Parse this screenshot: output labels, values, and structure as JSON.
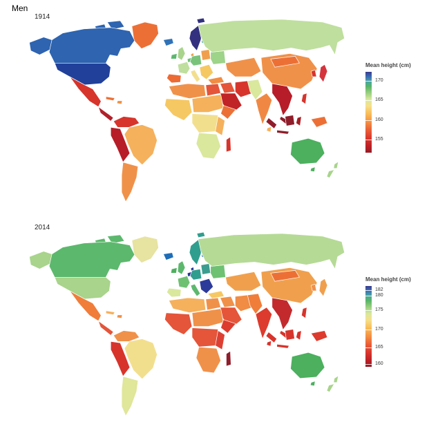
{
  "page_title": "Men",
  "color_scale_stops": [
    {
      "pos": 0.0,
      "color": "#3a3c8e"
    },
    {
      "pos": 0.06,
      "color": "#3a6db4"
    },
    {
      "pos": 0.12,
      "color": "#49a7a2"
    },
    {
      "pos": 0.18,
      "color": "#57b566"
    },
    {
      "pos": 0.26,
      "color": "#98cf7f"
    },
    {
      "pos": 0.34,
      "color": "#d9e89c"
    },
    {
      "pos": 0.42,
      "color": "#f6e08b"
    },
    {
      "pos": 0.52,
      "color": "#f8bc58"
    },
    {
      "pos": 0.62,
      "color": "#f59043"
    },
    {
      "pos": 0.72,
      "color": "#ea5f37"
    },
    {
      "pos": 0.82,
      "color": "#da372d"
    },
    {
      "pos": 0.92,
      "color": "#bc2026"
    },
    {
      "pos": 1.0,
      "color": "#951c27"
    }
  ],
  "chart_data": [
    {
      "type": "heatmap",
      "subtype": "world-choropleth",
      "title": "1914",
      "legend_title": "Mean height (cm)",
      "colorbar_ticks": [
        "170",
        "165",
        "160",
        "155"
      ],
      "tick_positions": [
        0.11,
        0.35,
        0.6,
        0.84
      ],
      "value_range": [
        152,
        172.5
      ],
      "legend_position": "right",
      "regions": {
        "greenland": {
          "color": "#ec7036",
          "value": 161
        },
        "baffin": {
          "color": "#2e64b0",
          "value": 170.5
        },
        "arctic2": {
          "color": "#2e64b0",
          "value": 170.5
        },
        "alaska": {
          "color": "#2e64b0",
          "value": 170.5
        },
        "canada": {
          "color": "#2e64b0",
          "value": 170.5
        },
        "usa": {
          "color": "#21409a",
          "value": 171
        },
        "mexico": {
          "color": "#d7342c",
          "value": 157.5
        },
        "central-america": {
          "color": "#b0212b",
          "value": 155
        },
        "cuba": {
          "color": "#ec7036",
          "value": 161
        },
        "hispaniola": {
          "color": "#f09144",
          "value": 162
        },
        "colombia-venezuela": {
          "color": "#d7342c",
          "value": 157.5
        },
        "andes": {
          "color": "#b71d28",
          "value": 155
        },
        "brazil": {
          "color": "#f5b15c",
          "value": 163.5
        },
        "argentina-chile": {
          "color": "#f0914a",
          "value": 162.5
        },
        "iceland": {
          "color": "#3072b7",
          "value": 170.5
        },
        "ireland": {
          "color": "#5cb86d",
          "value": 168
        },
        "uk": {
          "color": "#a8d48b",
          "value": 166.5
        },
        "scandinavia": {
          "color": "#32307f",
          "value": 172
        },
        "svalbard": {
          "color": "#32307f",
          "value": 172
        },
        "finland": {
          "color": "#2f9e8e",
          "value": 169.5
        },
        "denmark": {
          "color": "#f0a04c",
          "value": 162.5
        },
        "low-countries": {
          "color": "#6ec173",
          "value": 168
        },
        "germany-central": {
          "color": "#79c47a",
          "value": 167.5
        },
        "poland-baltics": {
          "color": "#f0a04c",
          "value": 162.5
        },
        "france": {
          "color": "#bfdf9e",
          "value": 166.5
        },
        "iberia": {
          "color": "#ec6a33",
          "value": 160.5
        },
        "italy": {
          "color": "#f2df8e",
          "value": 165
        },
        "balkans": {
          "color": "#f6c863",
          "value": 164.5
        },
        "ukraine-east": {
          "color": "#9ed38a",
          "value": 166.5
        },
        "russia": {
          "color": "#bfdf9e",
          "value": 166.5
        },
        "central-asia": {
          "color": "#f0914a",
          "value": 162.5
        },
        "turkey": {
          "color": "#f08c43",
          "value": 162
        },
        "iraq-syria": {
          "color": "#e4553a",
          "value": 159.5
        },
        "iran": {
          "color": "#d7342c",
          "value": 157.5
        },
        "arabia": {
          "color": "#c02427",
          "value": 154.5
        },
        "afghanistan-pakistan": {
          "color": "#d9e89c",
          "value": 165.5
        },
        "india": {
          "color": "#f08843",
          "value": 162
        },
        "sri-lanka": {
          "color": "#f5b15c",
          "value": 163.5
        },
        "china": {
          "color": "#f0914a",
          "value": 162.5
        },
        "mongolia": {
          "color": "#ec7036",
          "value": 161
        },
        "korea": {
          "color": "#d7342c",
          "value": 157.5
        },
        "japan": {
          "color": "#d5333c",
          "value": 157.5
        },
        "se-asia": {
          "color": "#b71d28",
          "value": 155
        },
        "malaysia": {
          "color": "#8f1d2a",
          "value": 153
        },
        "philippines": {
          "color": "#d7342c",
          "value": 157.5
        },
        "sumatra": {
          "color": "#8f1d2a",
          "value": 153
        },
        "borneo": {
          "color": "#8f1d2a",
          "value": 153
        },
        "java": {
          "color": "#8f1d2a",
          "value": 153
        },
        "sulawesi": {
          "color": "#a31e24",
          "value": 154
        },
        "new-guinea": {
          "color": "#ec7036",
          "value": 161
        },
        "maghreb": {
          "color": "#f0914a",
          "value": 162.5
        },
        "egypt": {
          "color": "#e4553a",
          "value": 159.5
        },
        "west-africa": {
          "color": "#f6c863",
          "value": 164.5
        },
        "sudan-belt": {
          "color": "#f5b15c",
          "value": 163.5
        },
        "horn-africa": {
          "color": "#ec7036",
          "value": 161
        },
        "central-africa": {
          "color": "#f2df8e",
          "value": 165
        },
        "east-africa": {
          "color": "#f5b15c",
          "value": 163.5
        },
        "southern-africa": {
          "color": "#d9e89c",
          "value": 165.5
        },
        "madagascar": {
          "color": "#d7342c",
          "value": 157.5
        },
        "australia": {
          "color": "#4cb05e",
          "value": 168
        },
        "tasmania": {
          "color": "#4cb05e",
          "value": 168
        },
        "nz-north": {
          "color": "#a8d48b",
          "value": 166.5
        },
        "nz-south": {
          "color": "#a8d48b",
          "value": 166.5
        }
      }
    },
    {
      "type": "heatmap",
      "subtype": "world-choropleth",
      "title": "2014",
      "legend_title": "Mean height (cm)",
      "colorbar_ticks": [
        "182",
        "180",
        "175",
        "170",
        "165",
        "160"
      ],
      "tick_positions": [
        0.05,
        0.12,
        0.3,
        0.54,
        0.76,
        0.965
      ],
      "value_range": [
        158,
        183
      ],
      "legend_position": "right",
      "regions": {
        "greenland": {
          "color": "#e7e3a0",
          "value": 173.5
        },
        "baffin": {
          "color": "#5cb86d",
          "value": 178.5
        },
        "arctic2": {
          "color": "#5cb86d",
          "value": 178.5
        },
        "alaska": {
          "color": "#a8d48b",
          "value": 177
        },
        "canada": {
          "color": "#5cb86d",
          "value": 178.5
        },
        "usa": {
          "color": "#a8d48b",
          "value": 177
        },
        "mexico": {
          "color": "#f07d3a",
          "value": 169
        },
        "central-america": {
          "color": "#e4553a",
          "value": 167
        },
        "cuba": {
          "color": "#f5b15c",
          "value": 171.5
        },
        "hispaniola": {
          "color": "#f0914a",
          "value": 170
        },
        "colombia-venezuela": {
          "color": "#f0914a",
          "value": 170
        },
        "andes": {
          "color": "#d7342c",
          "value": 165
        },
        "brazil": {
          "color": "#f2df8e",
          "value": 173.5
        },
        "argentina-chile": {
          "color": "#e0e69a",
          "value": 174.5
        },
        "iceland": {
          "color": "#1f6db6",
          "value": 180.5
        },
        "ireland": {
          "color": "#4cb05e",
          "value": 178.5
        },
        "uk": {
          "color": "#5cb86d",
          "value": 178
        },
        "scandinavia": {
          "color": "#2f9e8e",
          "value": 180
        },
        "svalbard": {
          "color": "#2f9e8e",
          "value": 180
        },
        "finland": {
          "color": "#3072b7",
          "value": 180
        },
        "denmark": {
          "color": "#27379b",
          "value": 181.5
        },
        "low-countries": {
          "color": "#27379b",
          "value": 182.5
        },
        "germany-central": {
          "color": "#2f9e8e",
          "value": 180
        },
        "poland-baltics": {
          "color": "#3b9d8f",
          "value": 179.5
        },
        "france": {
          "color": "#6ec173",
          "value": 178.5
        },
        "iberia": {
          "color": "#d9e89c",
          "value": 174.5
        },
        "italy": {
          "color": "#5cb86d",
          "value": 178
        },
        "balkans": {
          "color": "#2c3b9a",
          "value": 182
        },
        "ukraine-east": {
          "color": "#6ec173",
          "value": 178.5
        },
        "russia": {
          "color": "#b5da96",
          "value": 177
        },
        "central-asia": {
          "color": "#f0a04c",
          "value": 168.5
        },
        "turkey": {
          "color": "#f6c863",
          "value": 172.5
        },
        "iraq-syria": {
          "color": "#f0914a",
          "value": 170
        },
        "iran": {
          "color": "#f08c43",
          "value": 170
        },
        "arabia": {
          "color": "#e4553a",
          "value": 167
        },
        "afghanistan-pakistan": {
          "color": "#f07d3a",
          "value": 168.5
        },
        "india": {
          "color": "#dd3b2d",
          "value": 165
        },
        "sri-lanka": {
          "color": "#d7342c",
          "value": 166
        },
        "china": {
          "color": "#f0a04c",
          "value": 169.5
        },
        "mongolia": {
          "color": "#ec7036",
          "value": 168.5
        },
        "korea": {
          "color": "#f0914a",
          "value": 170.5
        },
        "japan": {
          "color": "#f0a04c",
          "value": 170.5
        },
        "se-asia": {
          "color": "#c22a2e",
          "value": 163.5
        },
        "malaysia": {
          "color": "#d7342c",
          "value": 165
        },
        "philippines": {
          "color": "#d7342c",
          "value": 163.5
        },
        "sumatra": {
          "color": "#d7342c",
          "value": 164
        },
        "borneo": {
          "color": "#d7342c",
          "value": 164
        },
        "java": {
          "color": "#d7342c",
          "value": 164
        },
        "sulawesi": {
          "color": "#d7342c",
          "value": 164
        },
        "new-guinea": {
          "color": "#dd3b2d",
          "value": 164
        },
        "maghreb": {
          "color": "#f5b15c",
          "value": 171.5
        },
        "egypt": {
          "color": "#f0914a",
          "value": 170
        },
        "west-africa": {
          "color": "#e4553a",
          "value": 167
        },
        "sudan-belt": {
          "color": "#f0914a",
          "value": 170
        },
        "horn-africa": {
          "color": "#dd3b2d",
          "value": 164.5
        },
        "central-africa": {
          "color": "#e4553a",
          "value": 167
        },
        "east-africa": {
          "color": "#dd4033",
          "value": 165
        },
        "southern-africa": {
          "color": "#f0914a",
          "value": 170
        },
        "madagascar": {
          "color": "#8f1d2a",
          "value": 160
        },
        "australia": {
          "color": "#4cb05e",
          "value": 178.5
        },
        "tasmania": {
          "color": "#4cb05e",
          "value": 178.5
        },
        "nz-north": {
          "color": "#a8d48b",
          "value": 177
        },
        "nz-south": {
          "color": "#a8d48b",
          "value": 177
        }
      }
    }
  ]
}
